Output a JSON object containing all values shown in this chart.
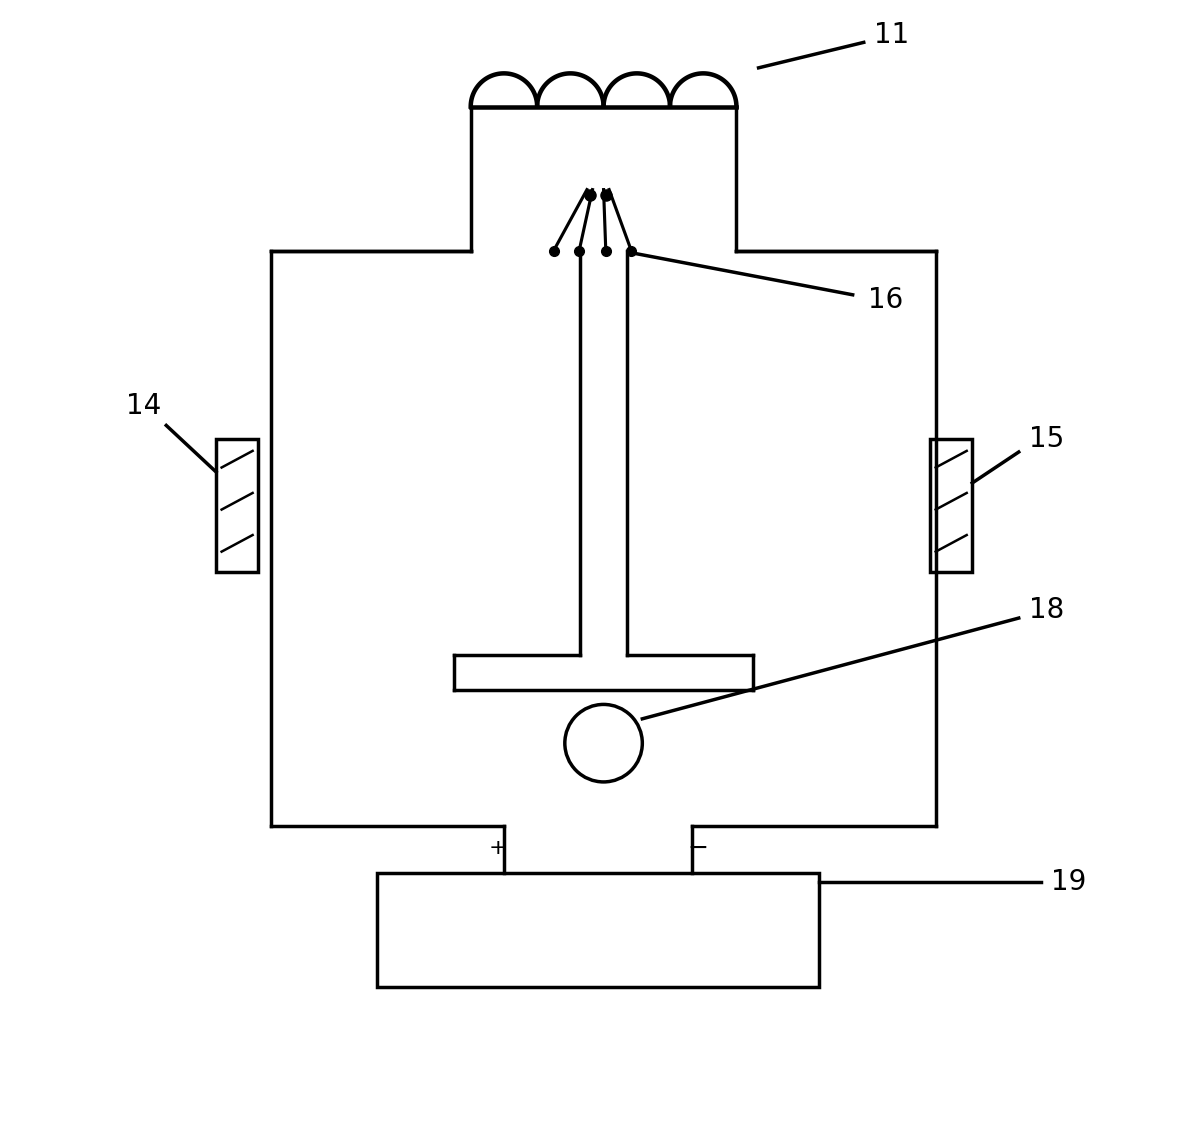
{
  "background": "#ffffff",
  "line_color": "#000000",
  "line_width": 2.5,
  "label_fontsize": 20
}
